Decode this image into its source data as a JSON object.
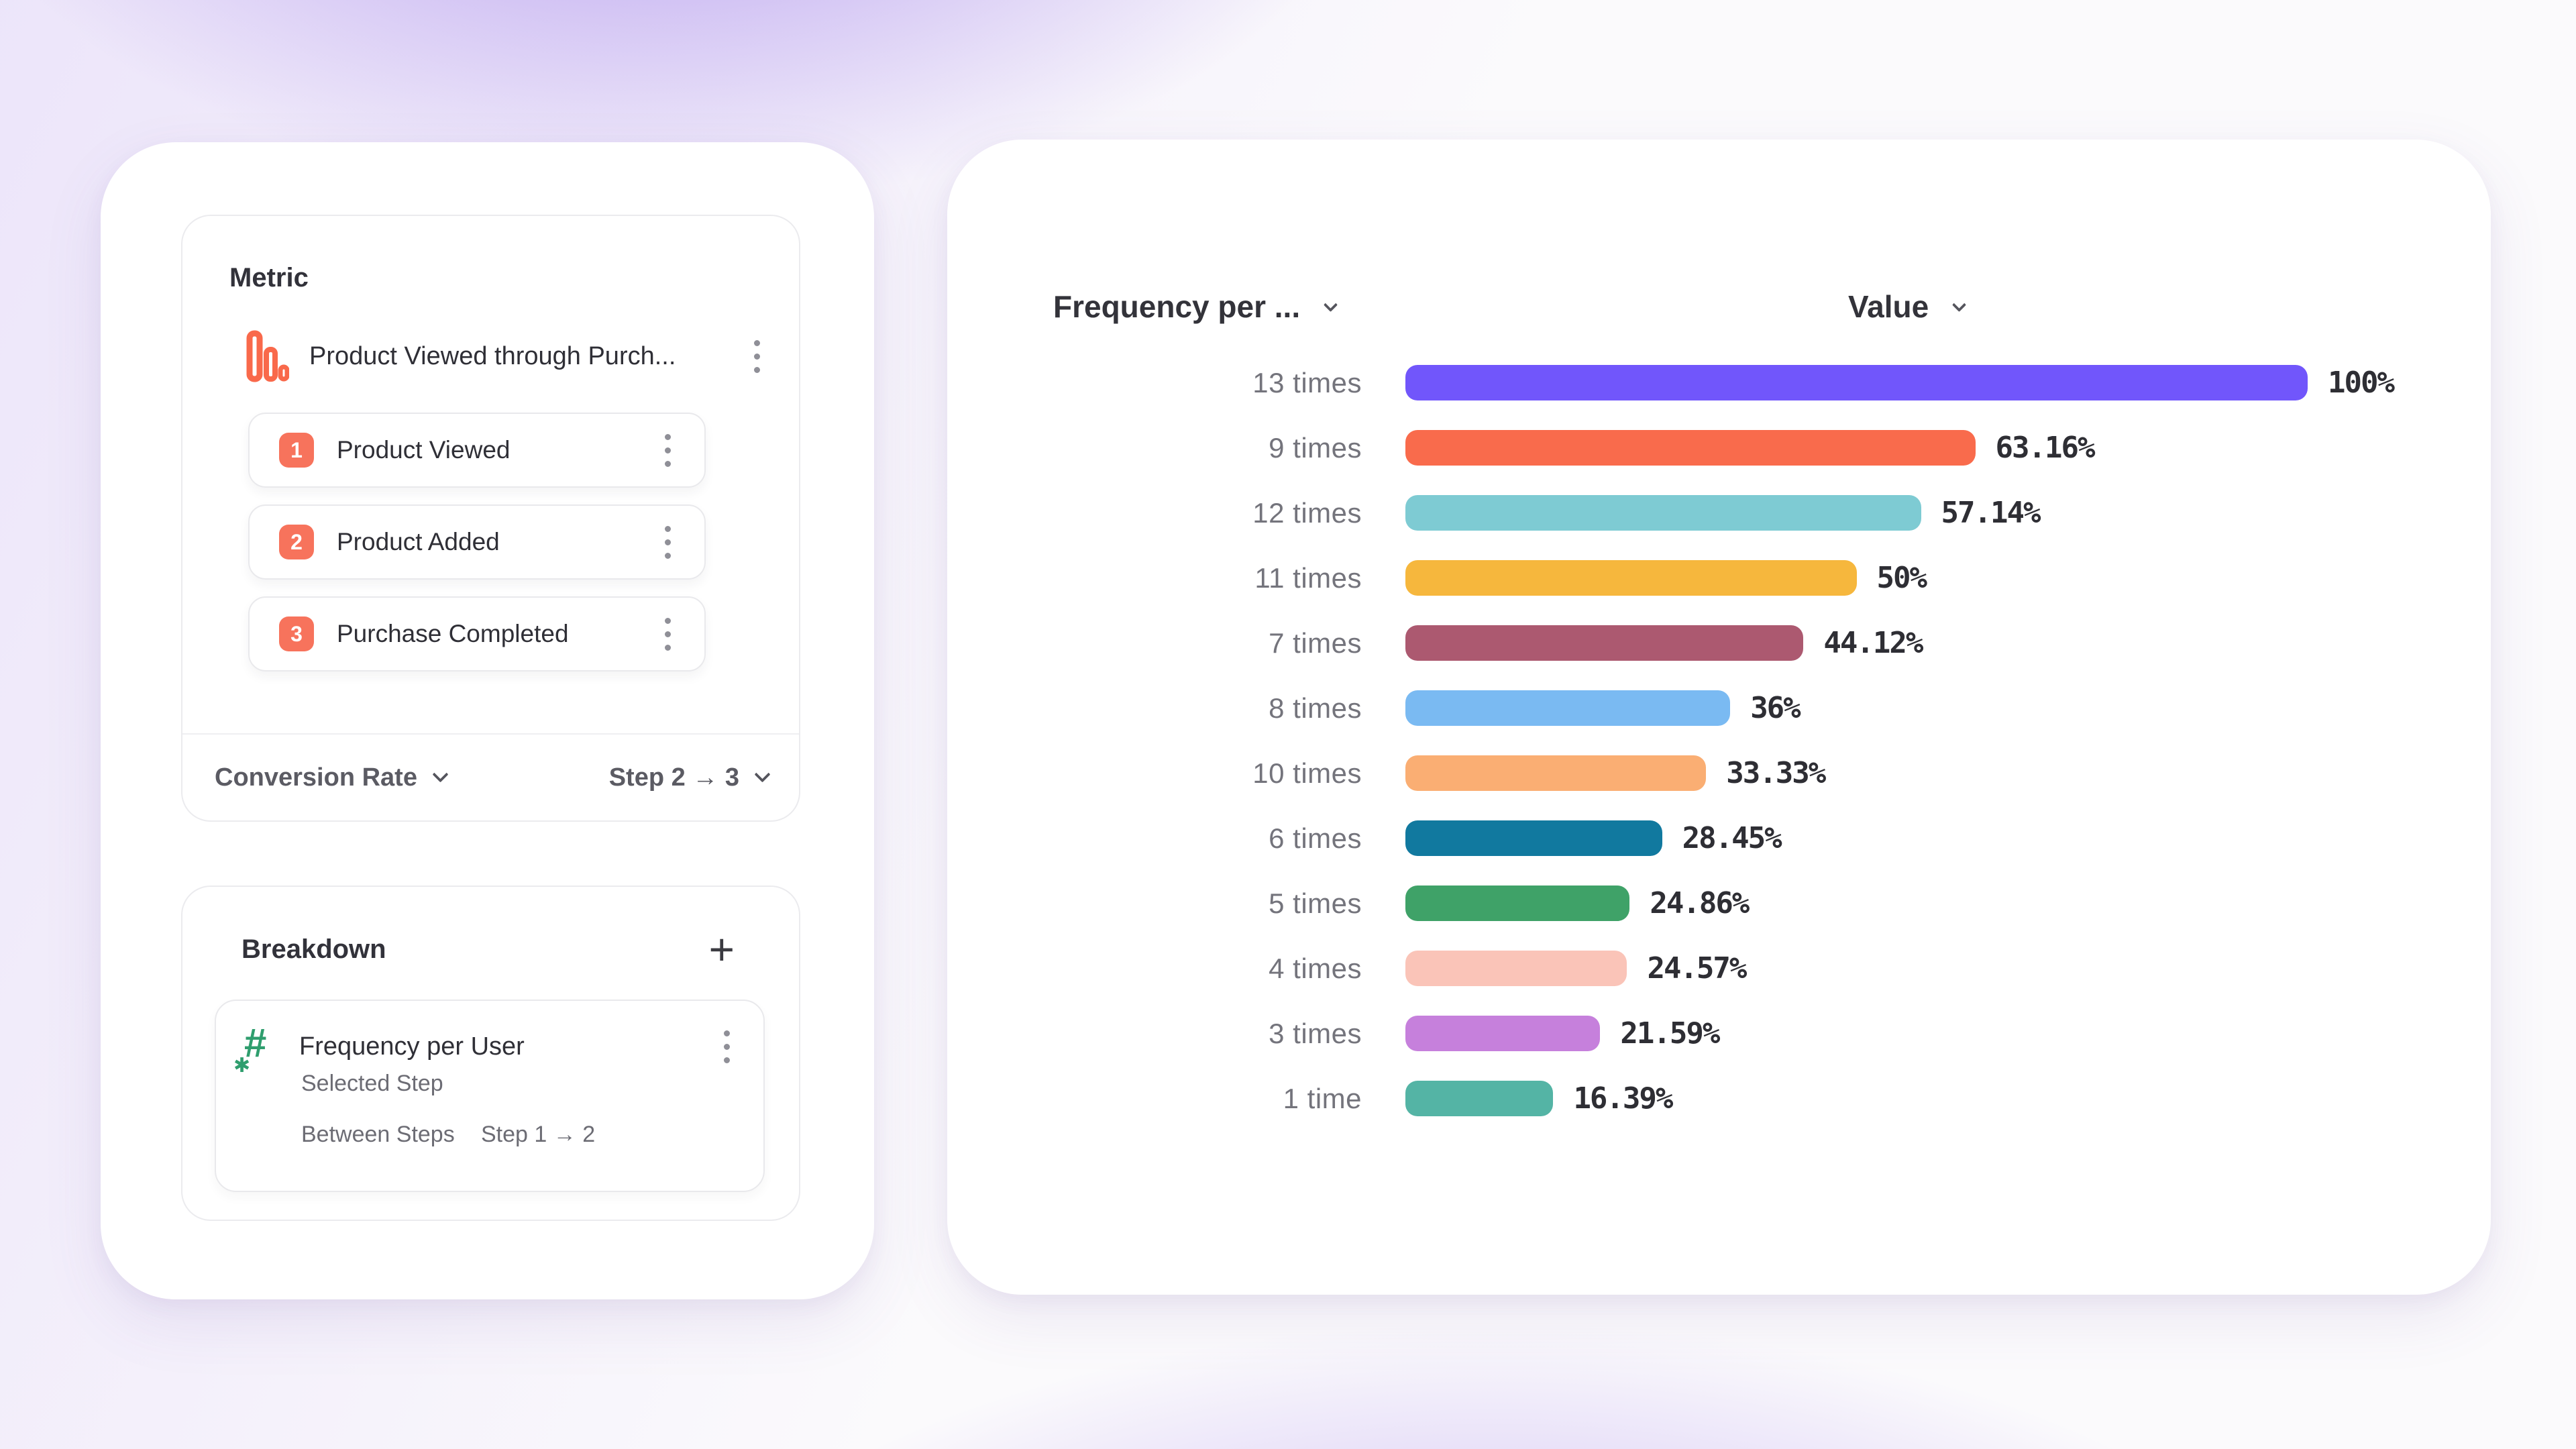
{
  "icons": {
    "hash_glyph": "#",
    "star_glyph": "✱",
    "plus_glyph": "+"
  },
  "left_panel": {
    "metric": {
      "title": "Metric",
      "funnel_name": "Product Viewed through Purch...",
      "steps": [
        {
          "number": "1",
          "label": "Product Viewed"
        },
        {
          "number": "2",
          "label": "Product Added"
        },
        {
          "number": "3",
          "label": "Purchase Completed"
        }
      ],
      "measure_label": "Conversion Rate",
      "step_range_label": "Step 2 → 3"
    },
    "breakdown": {
      "title": "Breakdown",
      "property_name": "Frequency per User",
      "selected_step_label": "Selected Step",
      "between_steps_label": "Between Steps",
      "between_steps_value": "Step 1 → 2"
    }
  },
  "chart": {
    "category_header": "Frequency per ...",
    "value_header": "Value"
  },
  "chart_data": {
    "type": "bar",
    "orientation": "horizontal",
    "categories": [
      "13 times",
      "9 times",
      "12 times",
      "11 times",
      "7 times",
      "8 times",
      "10 times",
      "6 times",
      "5 times",
      "4 times",
      "3 times",
      "1 time"
    ],
    "values": [
      100,
      63.16,
      57.14,
      50,
      44.12,
      36,
      33.33,
      28.45,
      24.86,
      24.57,
      21.59,
      16.39
    ],
    "value_labels": [
      "100%",
      "63.16%",
      "57.14%",
      "50%",
      "44.12%",
      "36%",
      "33.33%",
      "28.45%",
      "24.86%",
      "24.57%",
      "21.59%",
      "16.39%"
    ],
    "bar_colors": [
      "#7156fb",
      "#f96b4c",
      "#7ecbd3",
      "#f6b73d",
      "#ac5970",
      "#7abaf2",
      "#faae73",
      "#11799f",
      "#3fa268",
      "#fac4b8",
      "#c680dc",
      "#54b4a5"
    ],
    "xlim": [
      0,
      100
    ],
    "grid": false,
    "legend": null
  },
  "colors": {
    "step_badge": "#f7735c",
    "metric_icon": "#f9694b",
    "hash_icon": "#2f9e6e"
  }
}
